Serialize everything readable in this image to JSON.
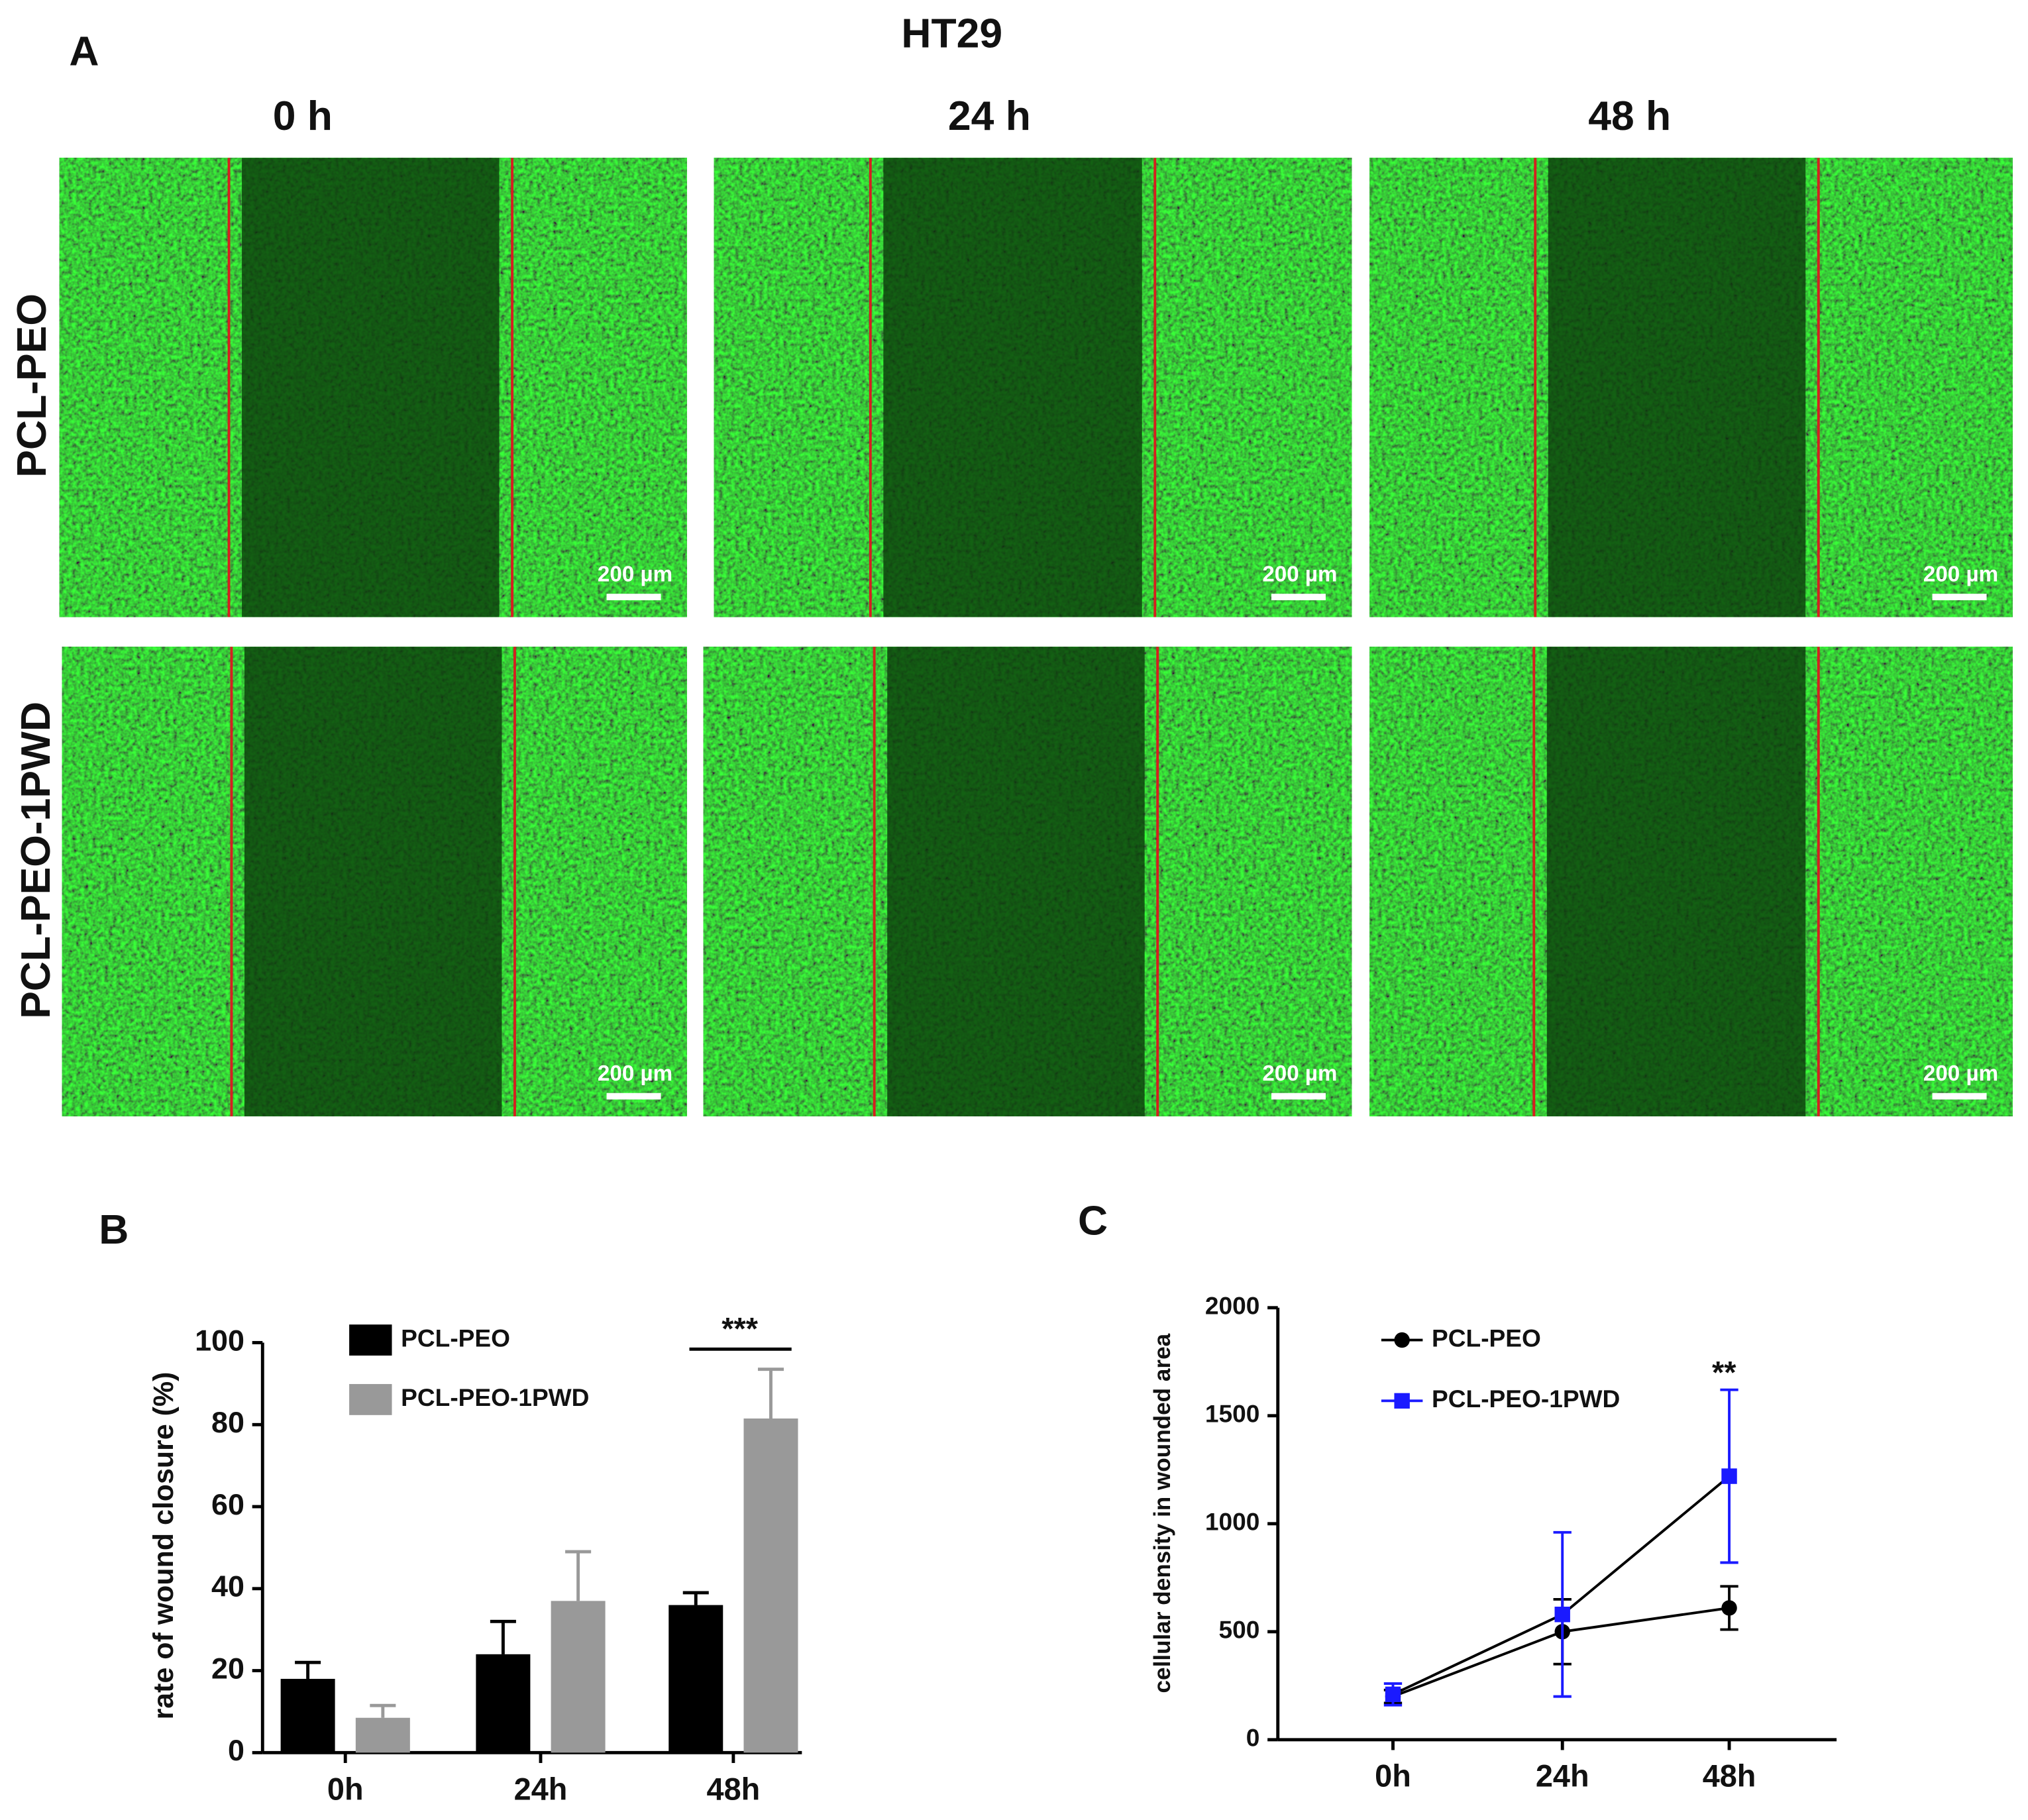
{
  "panel_a": {
    "label": "A",
    "title": "HT29",
    "columns": [
      "0 h",
      "24 h",
      "48 h"
    ],
    "rows": [
      "PCL-PEO",
      "PCL-PEO-1PWD"
    ],
    "scale_bar": "200 µm"
  },
  "chart_data": [
    {
      "type": "bar",
      "label": "B",
      "y_label": "rate of wound closure (%)",
      "categories": [
        "0h",
        "24h",
        "48h"
      ],
      "series": [
        {
          "name": "PCL-PEO",
          "color": "#000000",
          "values": [
            18,
            24,
            36
          ],
          "errors": [
            4,
            8,
            3
          ]
        },
        {
          "name": "PCL-PEO-1PWD",
          "color": "#999999",
          "values": [
            8.5,
            37,
            81.5
          ],
          "errors": [
            3,
            12,
            12
          ]
        }
      ],
      "ylim": [
        0,
        100
      ],
      "yticks": [
        0,
        20,
        40,
        60,
        80,
        100
      ],
      "grid": false,
      "annotation": "***"
    },
    {
      "type": "line",
      "label": "C",
      "y_label": "cellular density in wounded area",
      "categories": [
        "0h",
        "24h",
        "48h"
      ],
      "series": [
        {
          "name": "PCL-PEO",
          "color": "#000000",
          "marker": "circle",
          "values": [
            200,
            500,
            610
          ],
          "errors": [
            30,
            150,
            100
          ]
        },
        {
          "name": "PCL-PEO-1PWD",
          "color": "#1a1aff",
          "marker": "square",
          "values": [
            210,
            580,
            1220
          ],
          "errors": [
            50,
            380,
            400
          ]
        }
      ],
      "ylim": [
        0,
        2000
      ],
      "yticks": [
        0,
        500,
        1000,
        1500,
        2000
      ],
      "grid": false,
      "annotation": "**"
    }
  ]
}
